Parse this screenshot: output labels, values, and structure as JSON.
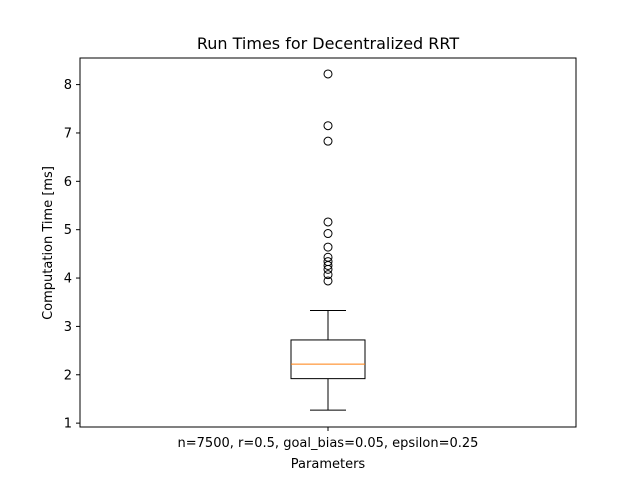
{
  "chart_data": {
    "type": "box",
    "title": "Run Times for Decentralized RRT",
    "xlabel": "Parameters",
    "ylabel": "Computation Time [ms]",
    "categories": [
      "n=7500, r=0.5, goal_bias=0.05, epsilon=0.25"
    ],
    "ylim": [
      0.92,
      8.55
    ],
    "yticks": [
      1,
      2,
      3,
      4,
      5,
      6,
      7,
      8
    ],
    "grid": false,
    "boxes": [
      {
        "category": "n=7500, r=0.5, goal_bias=0.05, epsilon=0.25",
        "whisker_low": 1.27,
        "q1": 1.92,
        "median": 2.22,
        "q3": 2.72,
        "whisker_high": 3.33,
        "outliers": [
          3.94,
          4.07,
          4.18,
          4.26,
          4.34,
          4.43,
          4.64,
          4.92,
          5.16,
          6.83,
          7.15,
          8.22
        ]
      }
    ],
    "colors": {
      "box": "#000000",
      "median": "#ff7f0e",
      "outlier": "#000000"
    }
  }
}
